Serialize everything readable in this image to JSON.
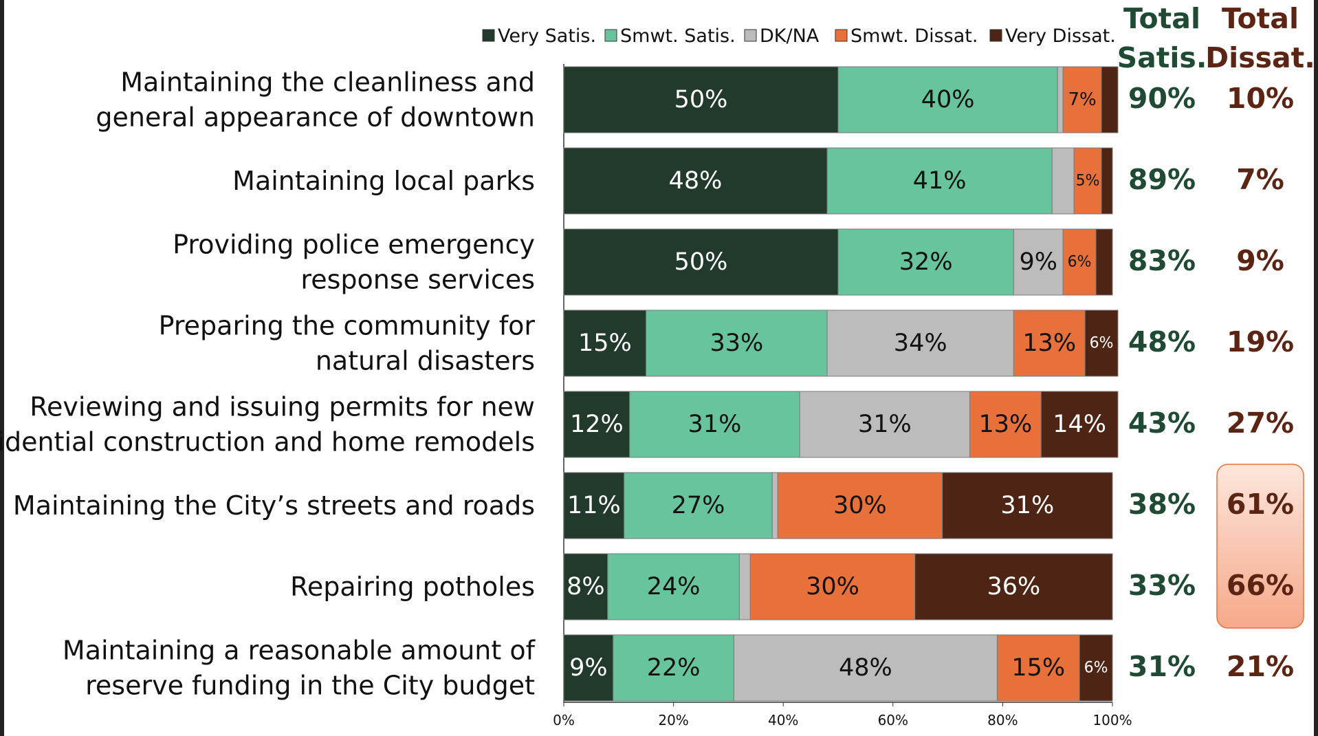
{
  "chart_data": {
    "type": "bar",
    "orientation": "horizontal",
    "stacked": true,
    "title": "",
    "xlabel": "",
    "ylabel": "",
    "xlim": [
      0,
      100
    ],
    "x_ticks": [
      "0%",
      "20%",
      "40%",
      "60%",
      "80%",
      "100%"
    ],
    "legend_position": "top",
    "categories": [
      [
        "Maintaining the cleanliness and",
        "general appearance of downtown"
      ],
      [
        "Maintaining local parks"
      ],
      [
        "Providing police emergency",
        "response services"
      ],
      [
        "Preparing the community for",
        "natural disasters"
      ],
      [
        "Reviewing and issuing permits for new",
        "residential construction and home remodels"
      ],
      [
        "Maintaining the City’s streets and roads"
      ],
      [
        "Repairing potholes"
      ],
      [
        "Maintaining a reasonable amount of",
        "reserve funding in the City budget"
      ]
    ],
    "series": [
      {
        "name": "Very Satis.",
        "color": "#213a2b",
        "label_color": "#ffffff",
        "values": [
          50,
          48,
          50,
          15,
          12,
          11,
          8,
          9
        ],
        "labels": [
          "50%",
          "48%",
          "50%",
          "15%",
          "12%",
          "11%",
          "8%",
          "9%"
        ]
      },
      {
        "name": "Smwt. Satis.",
        "color": "#68c49c",
        "label_color": "#111111",
        "values": [
          40,
          41,
          32,
          33,
          31,
          27,
          24,
          22
        ],
        "labels": [
          "40%",
          "41%",
          "32%",
          "33%",
          "31%",
          "27%",
          "24%",
          "22%"
        ]
      },
      {
        "name": "DK/NA",
        "color": "#bcbcbc",
        "label_color": "#111111",
        "values": [
          1,
          4,
          9,
          34,
          31,
          1,
          2,
          48
        ],
        "labels": [
          "",
          "",
          "9%",
          "34%",
          "31%",
          "",
          "",
          "48%"
        ]
      },
      {
        "name": "Smwt. Dissat.",
        "color": "#e8703a",
        "label_color": "#111111",
        "values": [
          7,
          5,
          6,
          13,
          13,
          30,
          30,
          15
        ],
        "labels": [
          "7%",
          "5%",
          "6%",
          "13%",
          "13%",
          "30%",
          "30%",
          "15%"
        ]
      },
      {
        "name": "Very Dissat.",
        "color": "#4e2515",
        "label_color": "#ffffff",
        "values": [
          3,
          2,
          3,
          6,
          14,
          31,
          36,
          6
        ],
        "labels": [
          "",
          "",
          "",
          "6%",
          "14%",
          "31%",
          "36%",
          "6%"
        ]
      }
    ],
    "totals": {
      "satisfied": {
        "header": [
          "Total",
          "Satis."
        ],
        "color": "#1f4a33",
        "values": [
          "90%",
          "89%",
          "83%",
          "48%",
          "43%",
          "38%",
          "33%",
          "31%"
        ]
      },
      "dissatisfied": {
        "header": [
          "Total",
          "Dissat."
        ],
        "color": "#5c2412",
        "values": [
          "10%",
          "7%",
          "9%",
          "19%",
          "27%",
          "61%",
          "66%",
          "21%"
        ],
        "highlighted_rows": [
          5,
          6
        ]
      }
    }
  }
}
